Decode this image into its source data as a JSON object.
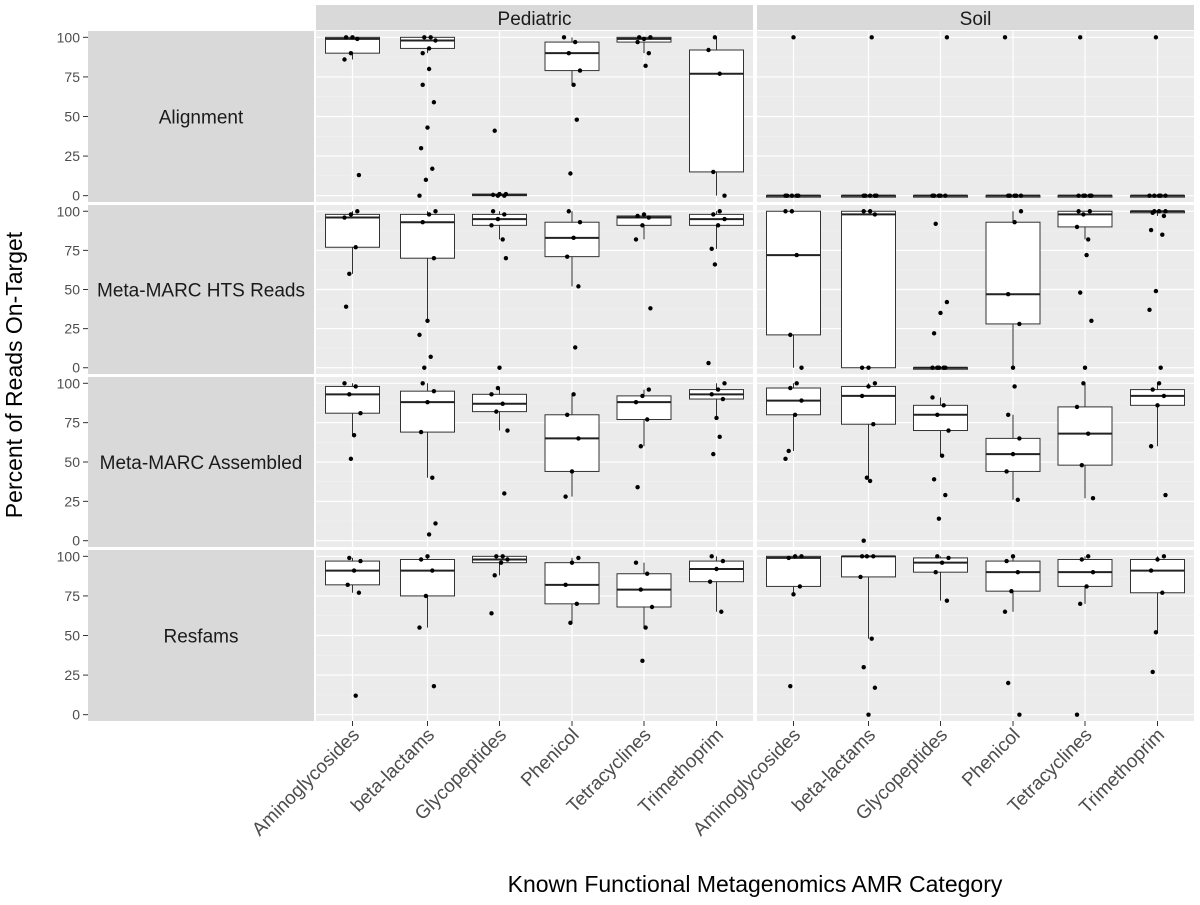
{
  "chart_data": {
    "type": "boxplot",
    "xlabel": "Known Functional Metagenomics AMR Category",
    "ylabel": "Percent of Reads On-Target",
    "ylim": [
      -4,
      104
    ],
    "yticks": [
      0,
      25,
      50,
      75,
      100
    ],
    "grid": true,
    "facet_columns": [
      "Pediatric",
      "Soil"
    ],
    "facet_rows": [
      "Alignment",
      "Meta-MARC HTS Reads",
      "Meta-MARC Assembled",
      "Resfams"
    ],
    "categories": [
      "Aminoglycosides",
      "beta-lactams",
      "Glycopeptides",
      "Phenicol",
      "Tetracyclines",
      "Trimethoprim"
    ],
    "panels": [
      {
        "row": "Alignment",
        "column": "Pediatric",
        "boxes": [
          {
            "category": "Aminoglycosides",
            "min": 86,
            "q1": 90,
            "median": 99,
            "q3": 100,
            "max": 100,
            "outliers": [
              13
            ]
          },
          {
            "category": "beta-lactams",
            "min": 90,
            "q1": 93,
            "median": 98,
            "q3": 100,
            "max": 100,
            "outliers": [
              0,
              10,
              17,
              30,
              43,
              59,
              70,
              80
            ]
          },
          {
            "category": "Glycopeptides",
            "min": 0,
            "q1": 0,
            "median": 0.5,
            "q3": 1,
            "max": 1,
            "outliers": [
              41
            ]
          },
          {
            "category": "Phenicol",
            "min": 70,
            "q1": 79,
            "median": 90,
            "q3": 97,
            "max": 100,
            "outliers": [
              14,
              48
            ]
          },
          {
            "category": "Tetracyclines",
            "min": 90,
            "q1": 97,
            "median": 99,
            "q3": 100,
            "max": 100,
            "outliers": [
              82
            ]
          },
          {
            "category": "Trimethoprim",
            "min": 0,
            "q1": 15,
            "median": 77,
            "q3": 92,
            "max": 100,
            "outliers": []
          }
        ]
      },
      {
        "row": "Alignment",
        "column": "Soil",
        "boxes": [
          {
            "category": "Aminoglycosides",
            "min": 0,
            "q1": 0,
            "median": 0,
            "q3": 0,
            "max": 0,
            "outliers": [
              100
            ]
          },
          {
            "category": "beta-lactams",
            "min": 0,
            "q1": 0,
            "median": 0,
            "q3": 0,
            "max": 0,
            "outliers": [
              100
            ]
          },
          {
            "category": "Glycopeptides",
            "min": 0,
            "q1": 0,
            "median": 0,
            "q3": 0,
            "max": 0,
            "outliers": [
              100
            ]
          },
          {
            "category": "Phenicol",
            "min": 0,
            "q1": 0,
            "median": 0,
            "q3": 0,
            "max": 0,
            "outliers": [
              100
            ]
          },
          {
            "category": "Tetracyclines",
            "min": 0,
            "q1": 0,
            "median": 0,
            "q3": 0,
            "max": 0,
            "outliers": [
              100
            ]
          },
          {
            "category": "Trimethoprim",
            "min": 0,
            "q1": 0,
            "median": 0,
            "q3": 0,
            "max": 0,
            "outliers": [
              100
            ]
          }
        ]
      },
      {
        "row": "Meta-MARC HTS Reads",
        "column": "Pediatric",
        "boxes": [
          {
            "category": "Aminoglycosides",
            "min": 60,
            "q1": 77,
            "median": 96,
            "q3": 98,
            "max": 100,
            "outliers": [
              39
            ]
          },
          {
            "category": "beta-lactams",
            "min": 30,
            "q1": 70,
            "median": 93,
            "q3": 98,
            "max": 100,
            "outliers": [
              0,
              7,
              21
            ]
          },
          {
            "category": "Glycopeptides",
            "min": 82,
            "q1": 91,
            "median": 95,
            "q3": 98,
            "max": 100,
            "outliers": [
              0,
              70
            ]
          },
          {
            "category": "Phenicol",
            "min": 52,
            "q1": 71,
            "median": 83,
            "q3": 93,
            "max": 100,
            "outliers": [
              13
            ]
          },
          {
            "category": "Tetracyclines",
            "min": 82,
            "q1": 91,
            "median": 96,
            "q3": 97,
            "max": 98,
            "outliers": [
              38
            ]
          },
          {
            "category": "Trimethoprim",
            "min": 76,
            "q1": 91,
            "median": 95,
            "q3": 98,
            "max": 100,
            "outliers": [
              3,
              66
            ]
          }
        ]
      },
      {
        "row": "Meta-MARC HTS Reads",
        "column": "Soil",
        "boxes": [
          {
            "category": "Aminoglycosides",
            "min": 0,
            "q1": 21,
            "median": 72,
            "q3": 100,
            "max": 100,
            "outliers": []
          },
          {
            "category": "beta-lactams",
            "min": 0,
            "q1": 0,
            "median": 98,
            "q3": 100,
            "max": 100,
            "outliers": []
          },
          {
            "category": "Glycopeptides",
            "min": 0,
            "q1": 0,
            "median": 0,
            "q3": 0,
            "max": 0,
            "outliers": [
              22,
              35,
              42,
              92
            ]
          },
          {
            "category": "Phenicol",
            "min": 0,
            "q1": 28,
            "median": 47,
            "q3": 93,
            "max": 100,
            "outliers": []
          },
          {
            "category": "Tetracyclines",
            "min": 82,
            "q1": 90,
            "median": 98,
            "q3": 100,
            "max": 100,
            "outliers": [
              0,
              30,
              48,
              72
            ]
          },
          {
            "category": "Trimethoprim",
            "min": 97,
            "q1": 99,
            "median": 100,
            "q3": 100,
            "max": 100,
            "outliers": [
              0,
              37,
              49,
              85,
              88
            ]
          }
        ]
      },
      {
        "row": "Meta-MARC Assembled",
        "column": "Pediatric",
        "boxes": [
          {
            "category": "Aminoglycosides",
            "min": 67,
            "q1": 81,
            "median": 93,
            "q3": 98,
            "max": 100,
            "outliers": [
              52
            ]
          },
          {
            "category": "beta-lactams",
            "min": 40,
            "q1": 69,
            "median": 88,
            "q3": 95,
            "max": 100,
            "outliers": [
              4,
              11
            ]
          },
          {
            "category": "Glycopeptides",
            "min": 70,
            "q1": 82,
            "median": 87,
            "q3": 93,
            "max": 97,
            "outliers": [
              30
            ]
          },
          {
            "category": "Phenicol",
            "min": 28,
            "q1": 44,
            "median": 65,
            "q3": 80,
            "max": 93,
            "outliers": []
          },
          {
            "category": "Tetracyclines",
            "min": 60,
            "q1": 77,
            "median": 88,
            "q3": 92,
            "max": 96,
            "outliers": [
              34
            ]
          },
          {
            "category": "Trimethoprim",
            "min": 78,
            "q1": 90,
            "median": 93,
            "q3": 96,
            "max": 100,
            "outliers": [
              55,
              66
            ]
          }
        ]
      },
      {
        "row": "Meta-MARC Assembled",
        "column": "Soil",
        "boxes": [
          {
            "category": "Aminoglycosides",
            "min": 57,
            "q1": 80,
            "median": 89,
            "q3": 97,
            "max": 100,
            "outliers": [
              52
            ]
          },
          {
            "category": "beta-lactams",
            "min": 40,
            "q1": 74,
            "median": 92,
            "q3": 98,
            "max": 100,
            "outliers": [
              0,
              38
            ]
          },
          {
            "category": "Glycopeptides",
            "min": 54,
            "q1": 70,
            "median": 80,
            "q3": 86,
            "max": 91,
            "outliers": [
              14,
              29,
              39
            ]
          },
          {
            "category": "Phenicol",
            "min": 26,
            "q1": 44,
            "median": 55,
            "q3": 65,
            "max": 80,
            "outliers": [
              98
            ]
          },
          {
            "category": "Tetracyclines",
            "min": 27,
            "q1": 48,
            "median": 68,
            "q3": 85,
            "max": 100,
            "outliers": []
          },
          {
            "category": "Trimethoprim",
            "min": 60,
            "q1": 86,
            "median": 92,
            "q3": 96,
            "max": 100,
            "outliers": [
              29
            ]
          }
        ]
      },
      {
        "row": "Resfams",
        "column": "Pediatric",
        "boxes": [
          {
            "category": "Aminoglycosides",
            "min": 77,
            "q1": 82,
            "median": 91,
            "q3": 97,
            "max": 99,
            "outliers": [
              12
            ]
          },
          {
            "category": "beta-lactams",
            "min": 55,
            "q1": 75,
            "median": 91,
            "q3": 98,
            "max": 100,
            "outliers": [
              18
            ]
          },
          {
            "category": "Glycopeptides",
            "min": 88,
            "q1": 96,
            "median": 98,
            "q3": 100,
            "max": 100,
            "outliers": [
              64
            ]
          },
          {
            "category": "Phenicol",
            "min": 58,
            "q1": 70,
            "median": 82,
            "q3": 96,
            "max": 99,
            "outliers": []
          },
          {
            "category": "Tetracyclines",
            "min": 55,
            "q1": 68,
            "median": 79,
            "q3": 89,
            "max": 96,
            "outliers": [
              34
            ]
          },
          {
            "category": "Trimethoprim",
            "min": 65,
            "q1": 84,
            "median": 92,
            "q3": 97,
            "max": 100,
            "outliers": []
          }
        ]
      },
      {
        "row": "Resfams",
        "column": "Soil",
        "boxes": [
          {
            "category": "Aminoglycosides",
            "min": 76,
            "q1": 81,
            "median": 99,
            "q3": 100,
            "max": 100,
            "outliers": [
              18
            ]
          },
          {
            "category": "beta-lactams",
            "min": 48,
            "q1": 87,
            "median": 100,
            "q3": 100,
            "max": 100,
            "outliers": [
              0,
              17,
              30
            ]
          },
          {
            "category": "Glycopeptides",
            "min": 72,
            "q1": 90,
            "median": 96,
            "q3": 99,
            "max": 100,
            "outliers": []
          },
          {
            "category": "Phenicol",
            "min": 65,
            "q1": 78,
            "median": 90,
            "q3": 97,
            "max": 100,
            "outliers": [
              0,
              20
            ]
          },
          {
            "category": "Tetracyclines",
            "min": 70,
            "q1": 81,
            "median": 90,
            "q3": 98,
            "max": 100,
            "outliers": [
              0
            ]
          },
          {
            "category": "Trimethoprim",
            "min": 52,
            "q1": 77,
            "median": 91,
            "q3": 98,
            "max": 100,
            "outliers": [
              27
            ]
          }
        ]
      }
    ]
  }
}
